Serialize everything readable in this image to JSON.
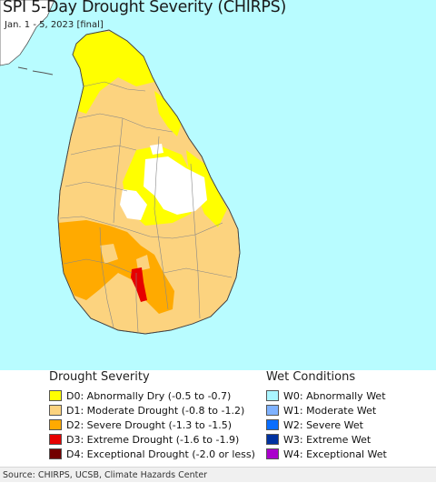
{
  "header": {
    "title": "SPI 5-Day Drought Severity (CHIRPS)",
    "subtitle": "Jan. 1 - 5, 2023 [final]"
  },
  "map": {
    "region": "Sri Lanka",
    "ocean_color": "#b8fcff",
    "land_colors": {
      "no_drought": "#ffffff",
      "D0": "#ffff00",
      "D1": "#fcd37f",
      "D2": "#ffaa00",
      "D3": "#e60000"
    },
    "border_color": "#888888"
  },
  "legend": {
    "drought_heading": "Drought Severity",
    "drought_items": [
      {
        "label": "D0: Abnormally Dry (-0.5 to -0.7)",
        "color": "#ffff00"
      },
      {
        "label": "D1: Moderate Drought (-0.8 to -1.2)",
        "color": "#fcd37f"
      },
      {
        "label": "D2: Severe Drought (-1.3 to -1.5)",
        "color": "#ffaa00"
      },
      {
        "label": "D3: Extreme Drought (-1.6 to -1.9)",
        "color": "#e60000"
      },
      {
        "label": "D4: Exceptional Drought (-2.0 or less)",
        "color": "#730000"
      }
    ],
    "wet_heading": "Wet Conditions",
    "wet_items": [
      {
        "label": "W0: Abnormally Wet",
        "color": "#aaf5ff"
      },
      {
        "label": "W1: Moderate Wet",
        "color": "#7fb2ff"
      },
      {
        "label": "W2: Severe Wet",
        "color": "#0a6eff"
      },
      {
        "label": "W3: Extreme Wet",
        "color": "#0032a0"
      },
      {
        "label": "W4: Exceptional Wet",
        "color": "#aa00cc"
      }
    ]
  },
  "footer": {
    "source": "Source: CHIRPS, UCSB, Climate Hazards Center"
  }
}
